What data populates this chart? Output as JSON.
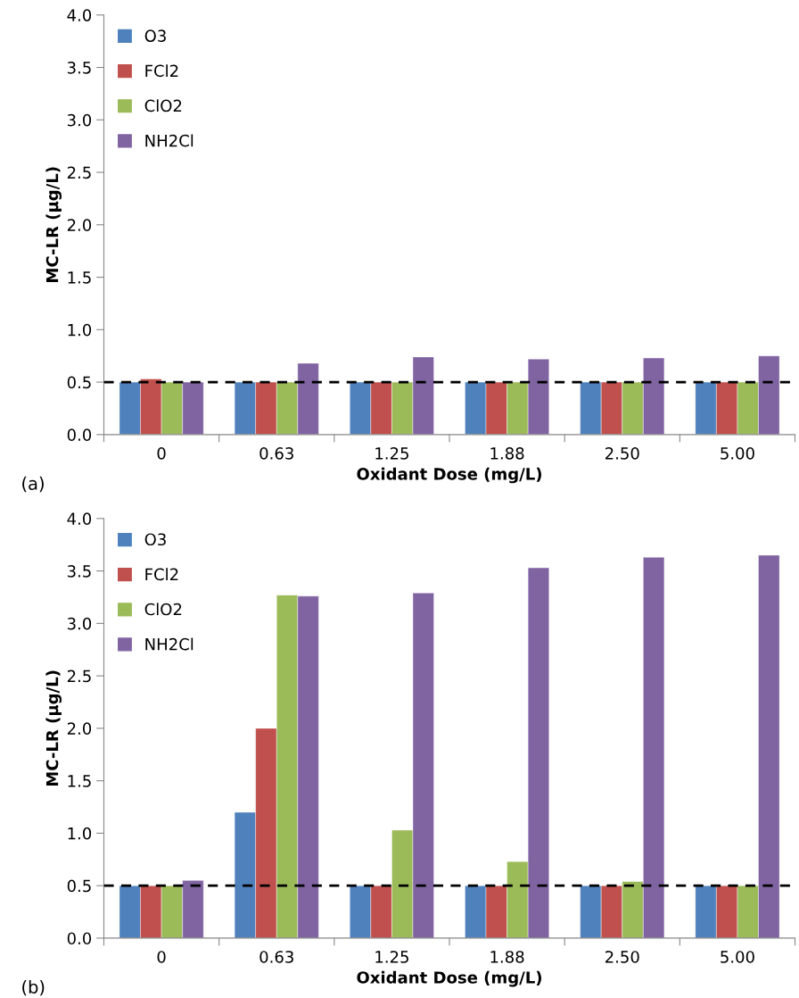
{
  "chart_data": [
    {
      "type": "bar",
      "xlabel": "Oxidant Dose (mg/L)",
      "ylabel": "MC-LR (µg/L)",
      "annotations": [
        "(a)"
      ],
      "categories": [
        "0",
        "0.63",
        "1.25",
        "1.88",
        "2.50",
        "5.00"
      ],
      "series": [
        {
          "name": "O3",
          "color": "#4f81bd",
          "values": [
            0.5,
            0.5,
            0.5,
            0.5,
            0.5,
            0.5
          ]
        },
        {
          "name": "FCl2",
          "color": "#c0504d",
          "values": [
            0.53,
            0.5,
            0.5,
            0.5,
            0.5,
            0.5
          ]
        },
        {
          "name": "ClO2",
          "color": "#9bbb59",
          "values": [
            0.5,
            0.5,
            0.5,
            0.5,
            0.5,
            0.5
          ]
        },
        {
          "name": "NH2Cl",
          "color": "#8064a2",
          "values": [
            0.5,
            0.68,
            0.74,
            0.72,
            0.73,
            0.75
          ]
        }
      ],
      "ylim": [
        0,
        4
      ],
      "yticks": [
        {
          "value": 0,
          "label": "0.0"
        },
        0.5,
        {
          "value": 1,
          "label": "1.0"
        },
        1.5,
        {
          "value": 2,
          "label": "2.0"
        },
        2.5,
        {
          "value": 3,
          "label": "3.0"
        },
        3.5,
        {
          "value": 4,
          "label": "4.0"
        }
      ],
      "ref_lines": [
        {
          "axis": "y",
          "value": 0.5,
          "color": "#000000",
          "line_style": "dashed"
        }
      ],
      "grid": false,
      "legend": "top left"
    },
    {
      "type": "bar",
      "xlabel": "Oxidant Dose (mg/L)",
      "ylabel": "MC-LR (µg/L)",
      "annotations": [
        "(b)"
      ],
      "categories": [
        "0",
        "0.63",
        "1.25",
        "1.88",
        "2.50",
        "5.00"
      ],
      "series": [
        {
          "name": "O3",
          "color": "#4f81bd",
          "values": [
            0.5,
            1.2,
            0.5,
            0.5,
            0.5,
            0.5
          ]
        },
        {
          "name": "FCl2",
          "color": "#c0504d",
          "values": [
            0.5,
            2.0,
            0.5,
            0.5,
            0.5,
            0.5
          ]
        },
        {
          "name": "ClO2",
          "color": "#9bbb59",
          "values": [
            0.5,
            3.27,
            1.03,
            0.73,
            0.54,
            0.5
          ]
        },
        {
          "name": "NH2Cl",
          "color": "#8064a2",
          "values": [
            0.55,
            3.26,
            3.29,
            3.53,
            3.63,
            3.65
          ]
        }
      ],
      "ylim": [
        0,
        4
      ],
      "yticks": [
        {
          "value": 0,
          "label": "0.0"
        },
        0.5,
        {
          "value": 1,
          "label": "1.0"
        },
        1.5,
        {
          "value": 2,
          "label": "2.0"
        },
        2.5,
        {
          "value": 3,
          "label": "3.0"
        },
        3.5,
        {
          "value": 4,
          "label": "4.0"
        }
      ],
      "ref_lines": [
        {
          "axis": "y",
          "value": 0.5,
          "color": "#000000",
          "line_style": "dashed"
        }
      ],
      "grid": false,
      "legend": "top left"
    }
  ]
}
